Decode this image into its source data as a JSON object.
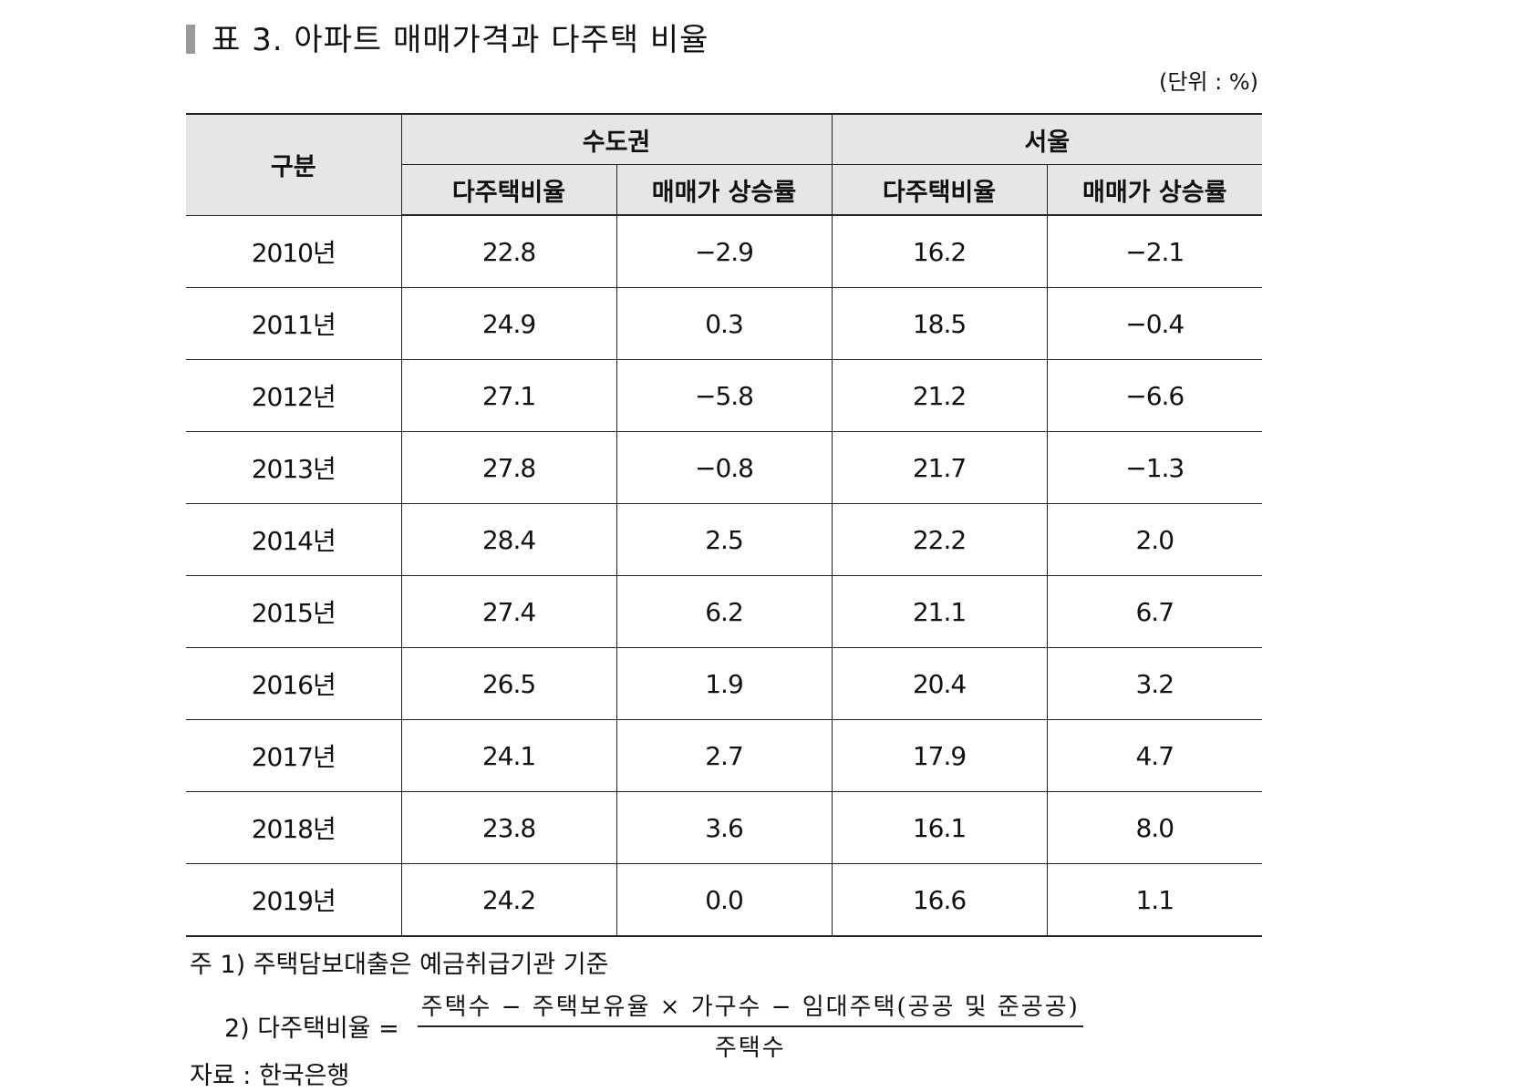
{
  "title": "표 3. 아파트 매매가격과 다주택 비율",
  "unit": "(단위 : %)",
  "table": {
    "header": {
      "category": "구분",
      "group1": "수도권",
      "group2": "서울",
      "col_ratio": "다주택비율",
      "col_rate": "매매가 상승률"
    },
    "rows": [
      {
        "year": "2010년",
        "metro_ratio": "22.8",
        "metro_rate": "−2.9",
        "seoul_ratio": "16.2",
        "seoul_rate": "−2.1"
      },
      {
        "year": "2011년",
        "metro_ratio": "24.9",
        "metro_rate": "0.3",
        "seoul_ratio": "18.5",
        "seoul_rate": "−0.4"
      },
      {
        "year": "2012년",
        "metro_ratio": "27.1",
        "metro_rate": "−5.8",
        "seoul_ratio": "21.2",
        "seoul_rate": "−6.6"
      },
      {
        "year": "2013년",
        "metro_ratio": "27.8",
        "metro_rate": "−0.8",
        "seoul_ratio": "21.7",
        "seoul_rate": "−1.3"
      },
      {
        "year": "2014년",
        "metro_ratio": "28.4",
        "metro_rate": "2.5",
        "seoul_ratio": "22.2",
        "seoul_rate": "2.0"
      },
      {
        "year": "2015년",
        "metro_ratio": "27.4",
        "metro_rate": "6.2",
        "seoul_ratio": "21.1",
        "seoul_rate": "6.7"
      },
      {
        "year": "2016년",
        "metro_ratio": "26.5",
        "metro_rate": "1.9",
        "seoul_ratio": "20.4",
        "seoul_rate": "3.2"
      },
      {
        "year": "2017년",
        "metro_ratio": "24.1",
        "metro_rate": "2.7",
        "seoul_ratio": "17.9",
        "seoul_rate": "4.7"
      },
      {
        "year": "2018년",
        "metro_ratio": "23.8",
        "metro_rate": "3.6",
        "seoul_ratio": "16.1",
        "seoul_rate": "8.0"
      },
      {
        "year": "2019년",
        "metro_ratio": "24.2",
        "metro_rate": "0.0",
        "seoul_ratio": "16.6",
        "seoul_rate": "1.1"
      }
    ]
  },
  "notes": {
    "note1": "주 1) 주택담보대출은 예금취급기관 기준",
    "note2_label": "2) 다주택비율 =",
    "note2_numerator": "주택수 − 주택보유율 × 가구수 − 임대주택(공공 및 준공공)",
    "note2_denominator": "주택수"
  },
  "source": "자료 : 한국은행"
}
